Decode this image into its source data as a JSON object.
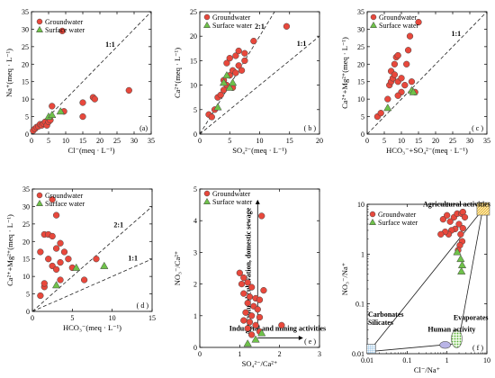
{
  "legend": {
    "groundwater": "Groundwater",
    "surface": "Surface water"
  },
  "colors": {
    "groundwater": "#e8483c",
    "surface": "#6fc24a",
    "marker_edge": "#444444",
    "line": "#222222"
  },
  "chart_data": [
    {
      "id": "a",
      "type": "scatter",
      "panel_label": "(a)",
      "xlabel": "Cl⁻(meq · L⁻¹)",
      "ylabel": "Na⁺(meq · L⁻¹)",
      "xlim": [
        0,
        35
      ],
      "ylim": [
        0,
        35
      ],
      "xticks": [
        0,
        5,
        10,
        15,
        20,
        25,
        30,
        35
      ],
      "yticks": [
        0,
        5,
        10,
        15,
        20,
        25,
        30,
        35
      ],
      "ref_lines": [
        {
          "label": "1:1",
          "slope": 1
        }
      ],
      "series": [
        {
          "name": "Groundwater",
          "points": [
            [
              0.5,
              1
            ],
            [
              1,
              1.5
            ],
            [
              1.5,
              2
            ],
            [
              2,
              2.2
            ],
            [
              2.5,
              2.8
            ],
            [
              3,
              2.5
            ],
            [
              3.5,
              3
            ],
            [
              4,
              3.5
            ],
            [
              4.5,
              2.5
            ],
            [
              5,
              3.5
            ],
            [
              5.5,
              4
            ],
            [
              6,
              8
            ],
            [
              9,
              29.5
            ],
            [
              9.5,
              6.5
            ],
            [
              15,
              9
            ],
            [
              18,
              10.5
            ],
            [
              18.5,
              10
            ],
            [
              28.5,
              12.5
            ],
            [
              15,
              5
            ]
          ]
        },
        {
          "name": "Surface water",
          "points": [
            [
              5,
              5
            ],
            [
              6,
              5.5
            ],
            [
              8.5,
              6.5
            ]
          ]
        }
      ]
    },
    {
      "id": "b",
      "type": "scatter",
      "panel_label": "( b )",
      "xlabel": "SO₄²⁻(meq · L⁻¹)",
      "ylabel": "Ca²⁺(meq · L⁻¹)",
      "xlim": [
        0,
        20
      ],
      "ylim": [
        0,
        25
      ],
      "xticks": [
        0,
        5,
        10,
        15,
        20
      ],
      "yticks": [
        0,
        5,
        10,
        15,
        20,
        25
      ],
      "ref_lines": [
        {
          "label": "2:1",
          "slope": 2
        },
        {
          "label": "1:1",
          "slope": 1
        }
      ],
      "series": [
        {
          "name": "Groundwater",
          "points": [
            [
              1.5,
              4
            ],
            [
              2,
              3.5
            ],
            [
              2.5,
              5
            ],
            [
              3,
              7.5
            ],
            [
              3.5,
              8
            ],
            [
              4,
              9
            ],
            [
              4.5,
              10
            ],
            [
              5,
              12
            ],
            [
              5.5,
              13
            ],
            [
              4.5,
              14.5
            ],
            [
              5,
              15.5
            ],
            [
              6,
              16
            ],
            [
              6.5,
              17
            ],
            [
              7.5,
              15
            ],
            [
              7.5,
              16.5
            ],
            [
              9,
              19
            ],
            [
              14.5,
              22
            ],
            [
              4,
              11
            ],
            [
              5.5,
              9.5
            ],
            [
              6,
              12.5
            ],
            [
              6.5,
              14
            ],
            [
              7,
              13
            ]
          ]
        },
        {
          "name": "Surface water",
          "points": [
            [
              3,
              5.5
            ],
            [
              4,
              10.5
            ],
            [
              4.5,
              12
            ],
            [
              5,
              9.5
            ],
            [
              5.5,
              10.5
            ]
          ]
        }
      ]
    },
    {
      "id": "c",
      "type": "scatter",
      "panel_label": "( c )",
      "xlabel": "HCO₃⁻+SO₄²⁻(meq · L⁻¹)",
      "ylabel": "Ca²⁺+Mg²⁺(meq · L⁻¹)",
      "xlim": [
        0,
        35
      ],
      "ylim": [
        0,
        35
      ],
      "xticks": [
        0,
        5,
        10,
        15,
        20,
        25,
        30,
        35
      ],
      "yticks": [
        0,
        5,
        10,
        15,
        20,
        25,
        30,
        35
      ],
      "ref_lines": [
        {
          "label": "1:1",
          "slope": 1
        }
      ],
      "series": [
        {
          "name": "Groundwater",
          "points": [
            [
              3,
              5
            ],
            [
              4,
              6
            ],
            [
              6,
              10
            ],
            [
              6.5,
              14
            ],
            [
              7,
              15
            ],
            [
              7.5,
              16
            ],
            [
              7,
              18
            ],
            [
              8,
              20
            ],
            [
              8.5,
              22
            ],
            [
              9,
              22.5
            ],
            [
              8,
              17
            ],
            [
              9,
              15
            ],
            [
              10,
              16
            ],
            [
              10,
              12
            ],
            [
              11,
              14
            ],
            [
              11.5,
              20
            ],
            [
              12,
              24
            ],
            [
              12.5,
              28
            ],
            [
              13,
              15
            ],
            [
              14,
              12
            ],
            [
              15,
              32
            ],
            [
              9,
              11
            ]
          ]
        },
        {
          "name": "Surface water",
          "points": [
            [
              6,
              7.5
            ],
            [
              13,
              12.5
            ],
            [
              13.5,
              12
            ]
          ]
        }
      ]
    },
    {
      "id": "d",
      "type": "scatter",
      "panel_label": "( d )",
      "xlabel": "HCO₃⁻(meq · L⁻¹)",
      "ylabel": "Ca²⁺+Mg²⁺(meq · L⁻¹)",
      "xlim": [
        0,
        15
      ],
      "ylim": [
        0,
        35
      ],
      "xticks": [
        0,
        5,
        10,
        15
      ],
      "yticks": [
        0,
        5,
        10,
        15,
        20,
        25,
        30,
        35
      ],
      "ref_lines": [
        {
          "label": "2:1",
          "slope": 2
        },
        {
          "label": "1:1",
          "slope": 1
        }
      ],
      "series": [
        {
          "name": "Groundwater",
          "points": [
            [
              1,
              4.5
            ],
            [
              1.5,
              7
            ],
            [
              1,
              17
            ],
            [
              1.5,
              22
            ],
            [
              2,
              22
            ],
            [
              2.5,
              21.5
            ],
            [
              2,
              15
            ],
            [
              2.5,
              13
            ],
            [
              3,
              12
            ],
            [
              3.5,
              14
            ],
            [
              3,
              18
            ],
            [
              3.5,
              19.5
            ],
            [
              4,
              17
            ],
            [
              4.5,
              15
            ],
            [
              2.5,
              32
            ],
            [
              3,
              27.5
            ],
            [
              3.5,
              9
            ],
            [
              5,
              12.5
            ],
            [
              1.5,
              8
            ],
            [
              6.5,
              9
            ],
            [
              8,
              15
            ]
          ]
        },
        {
          "name": "Surface water",
          "points": [
            [
              3,
              7.5
            ],
            [
              5.5,
              12.5
            ],
            [
              9,
              13
            ]
          ]
        }
      ]
    },
    {
      "id": "e",
      "type": "scatter",
      "panel_label": "( e )",
      "xlabel": "SO₄²⁻/Ca²⁺",
      "ylabel": "NO₃⁻/Ca²⁺",
      "xlim": [
        0,
        3
      ],
      "ylim": [
        0,
        5
      ],
      "xticks": [
        0,
        1,
        2,
        3
      ],
      "yticks": [
        0,
        1,
        2,
        3,
        4,
        5
      ],
      "annotations": [
        "Agricultural cultivation, domestic sewage",
        "Industrial and mining activities"
      ],
      "series": [
        {
          "name": "Groundwater",
          "points": [
            [
              1,
              2.35
            ],
            [
              1.1,
              2.2
            ],
            [
              1.05,
              2.0
            ],
            [
              1.2,
              2.05
            ],
            [
              1.3,
              1.9
            ],
            [
              1.1,
              1.7
            ],
            [
              1.25,
              1.6
            ],
            [
              1.4,
              1.55
            ],
            [
              1.5,
              1.5
            ],
            [
              1.2,
              1.4
            ],
            [
              1.35,
              1.3
            ],
            [
              1.45,
              1.2
            ],
            [
              1.15,
              1.1
            ],
            [
              1.3,
              1.0
            ],
            [
              1.5,
              0.95
            ],
            [
              1.1,
              0.85
            ],
            [
              1.25,
              0.8
            ],
            [
              1.4,
              0.7
            ],
            [
              1.2,
              0.6
            ],
            [
              1.5,
              0.5
            ],
            [
              1.3,
              0.4
            ],
            [
              1.55,
              4.15
            ],
            [
              2.05,
              0.7
            ],
            [
              1.6,
              1.8
            ]
          ]
        },
        {
          "name": "Surface water",
          "points": [
            [
              1.2,
              0.12
            ],
            [
              1.4,
              0.25
            ],
            [
              1.55,
              0.45
            ]
          ]
        }
      ]
    },
    {
      "id": "f",
      "type": "scatter",
      "panel_label": "( f )",
      "xlabel": "Cl⁻/Na⁺",
      "ylabel": "NO₃⁻/Na⁺",
      "xscale": "log",
      "yscale": "log",
      "xlim": [
        0.01,
        10
      ],
      "ylim": [
        0.01,
        10
      ],
      "xticks": [
        0.01,
        0.1,
        1,
        10
      ],
      "yticks": [
        0.01,
        0.1,
        1,
        10
      ],
      "annotations": [
        "Agricultural activities",
        "Carbonates",
        "Silicates",
        "Human activity",
        "Evaporates"
      ],
      "series": [
        {
          "name": "Groundwater",
          "points": [
            [
              0.8,
              5
            ],
            [
              1,
              6
            ],
            [
              1.2,
              4.5
            ],
            [
              1.5,
              5.5
            ],
            [
              1.8,
              6.5
            ],
            [
              2,
              4
            ],
            [
              1.6,
              3.2
            ],
            [
              1.3,
              3
            ],
            [
              1.1,
              2.5
            ],
            [
              0.9,
              2.8
            ],
            [
              0.7,
              2.5
            ],
            [
              2.2,
              2.5
            ],
            [
              2.5,
              3.3
            ],
            [
              2.4,
              1.8
            ],
            [
              2.1,
              1.5
            ],
            [
              1.9,
              1.2
            ],
            [
              2.3,
              6.5
            ],
            [
              2.5,
              7
            ],
            [
              2.8,
              5.5
            ]
          ]
        },
        {
          "name": "Surface water",
          "points": [
            [
              1.8,
              1.1
            ],
            [
              2.2,
              0.8
            ],
            [
              2.4,
              0.6
            ],
            [
              2.3,
              0.45
            ]
          ]
        }
      ]
    }
  ]
}
